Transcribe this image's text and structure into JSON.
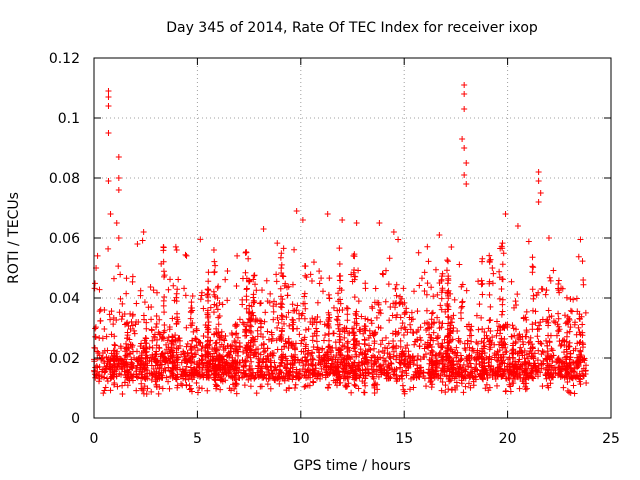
{
  "chart_data": {
    "type": "scatter",
    "title": "Day 345 of 2014, Rate Of TEC Index for receiver ixop",
    "xlabel": "GPS time / hours",
    "ylabel": "ROTI / TECUs",
    "xlim": [
      0,
      25
    ],
    "ylim": [
      0,
      0.12
    ],
    "xticks": [
      0,
      5,
      10,
      15,
      20,
      25
    ],
    "yticks": [
      0,
      0.02,
      0.04,
      0.06,
      0.08,
      0.1,
      0.12
    ],
    "xtick_labels": [
      "0",
      "5",
      "10",
      "15",
      "20",
      "25"
    ],
    "ytick_labels": [
      "0",
      "0.02",
      "0.04",
      "0.06",
      "0.08",
      "0.1",
      "0.12"
    ],
    "marker": "+",
    "color": "#ff0000",
    "grid": true,
    "data_x_range": [
      0,
      23.8
    ],
    "series": [
      {
        "name": "ROTI",
        "description": "dense scatter, bulk 0.005-0.03 TECU/s with spikes",
        "notable_points": [
          {
            "x": 0.7,
            "y": 0.109
          },
          {
            "x": 0.7,
            "y": 0.107
          },
          {
            "x": 0.7,
            "y": 0.104
          },
          {
            "x": 0.7,
            "y": 0.095
          },
          {
            "x": 0.7,
            "y": 0.079
          },
          {
            "x": 0.8,
            "y": 0.068
          },
          {
            "x": 1.2,
            "y": 0.087
          },
          {
            "x": 1.2,
            "y": 0.08
          },
          {
            "x": 1.2,
            "y": 0.076
          },
          {
            "x": 1.1,
            "y": 0.065
          },
          {
            "x": 1.2,
            "y": 0.06
          },
          {
            "x": 0.1,
            "y": 0.05
          },
          {
            "x": 2.4,
            "y": 0.062
          },
          {
            "x": 2.1,
            "y": 0.058
          },
          {
            "x": 5.8,
            "y": 0.056
          },
          {
            "x": 8.2,
            "y": 0.063
          },
          {
            "x": 9.8,
            "y": 0.069
          },
          {
            "x": 10.1,
            "y": 0.066
          },
          {
            "x": 11.3,
            "y": 0.068
          },
          {
            "x": 12.0,
            "y": 0.066
          },
          {
            "x": 12.7,
            "y": 0.065
          },
          {
            "x": 13.8,
            "y": 0.065
          },
          {
            "x": 14.5,
            "y": 0.062
          },
          {
            "x": 16.7,
            "y": 0.061
          },
          {
            "x": 17.9,
            "y": 0.111
          },
          {
            "x": 17.9,
            "y": 0.108
          },
          {
            "x": 17.9,
            "y": 0.103
          },
          {
            "x": 17.8,
            "y": 0.093
          },
          {
            "x": 17.9,
            "y": 0.09
          },
          {
            "x": 18.0,
            "y": 0.085
          },
          {
            "x": 17.9,
            "y": 0.081
          },
          {
            "x": 18.0,
            "y": 0.078
          },
          {
            "x": 19.9,
            "y": 0.068
          },
          {
            "x": 20.5,
            "y": 0.064
          },
          {
            "x": 21.5,
            "y": 0.082
          },
          {
            "x": 21.5,
            "y": 0.079
          },
          {
            "x": 21.6,
            "y": 0.075
          },
          {
            "x": 21.5,
            "y": 0.072
          },
          {
            "x": 22.0,
            "y": 0.06
          },
          {
            "x": 23.5,
            "y": 0.033
          }
        ]
      }
    ]
  }
}
